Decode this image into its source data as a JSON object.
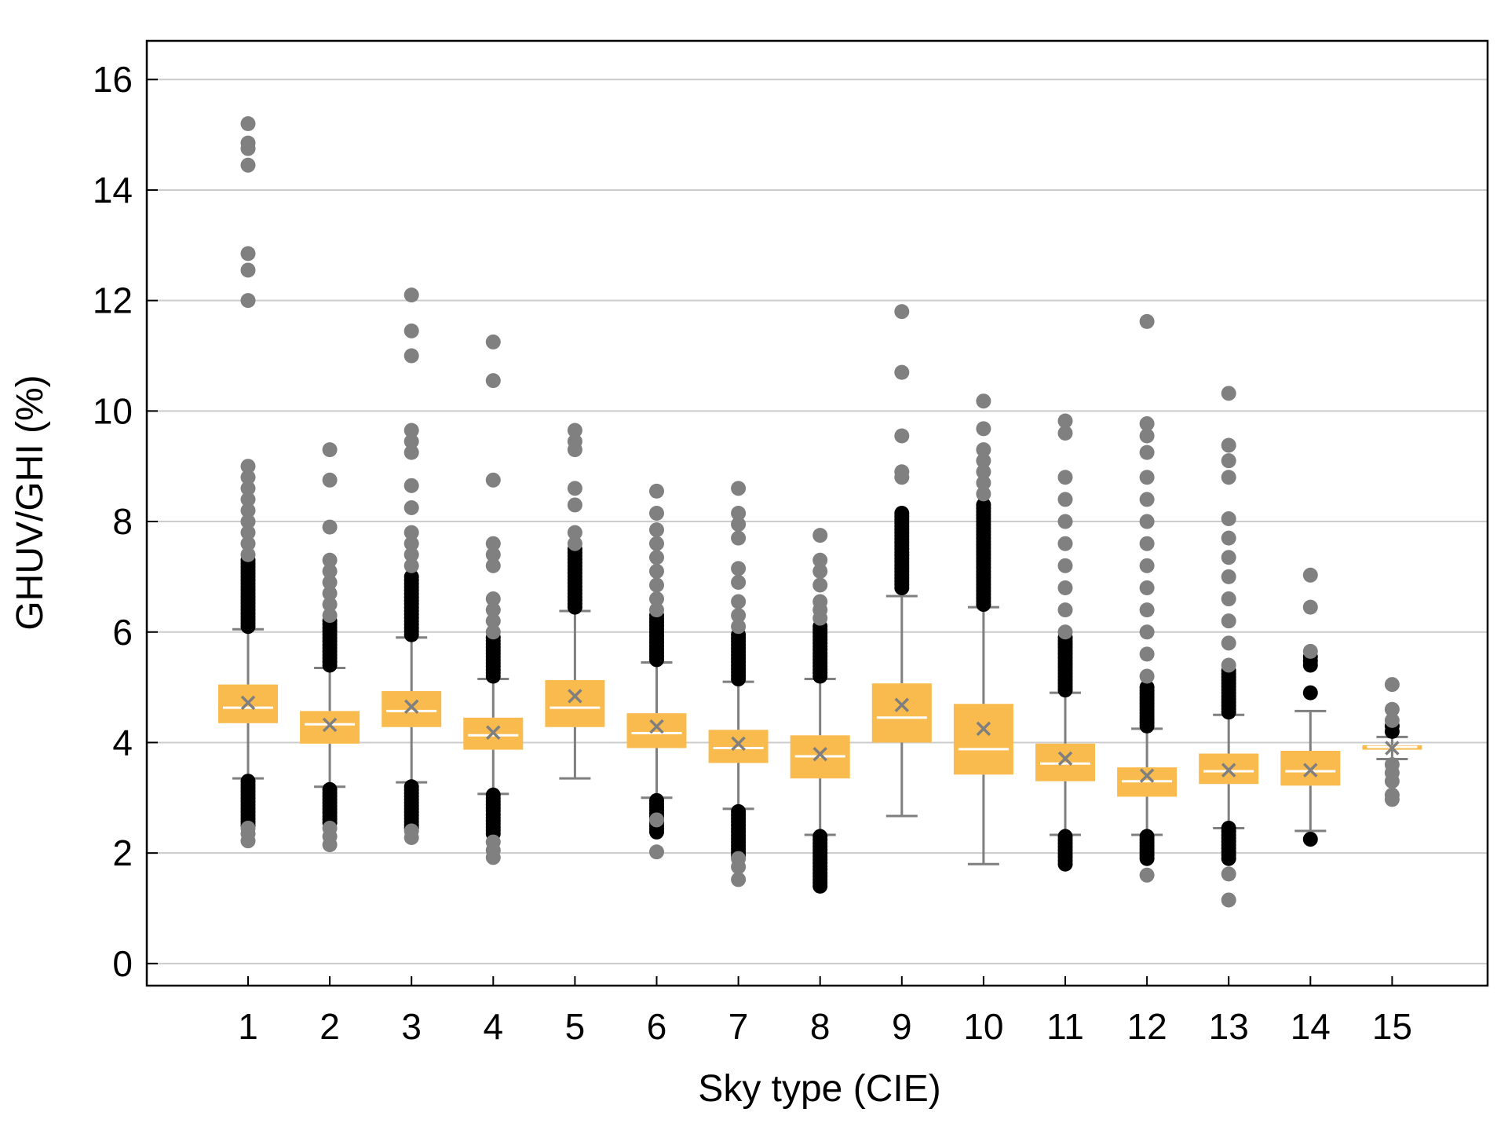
{
  "chart_data": {
    "type": "box",
    "title": "",
    "xlabel": "Sky type (CIE)",
    "ylabel": "GHUV/GHI (%)",
    "ylim": [
      -0.4,
      16.7
    ],
    "yticks": [
      0,
      2,
      4,
      6,
      8,
      10,
      12,
      14,
      16
    ],
    "grid": true,
    "categories": [
      "1",
      "2",
      "3",
      "4",
      "5",
      "6",
      "7",
      "8",
      "9",
      "10",
      "11",
      "12",
      "13",
      "14",
      "15"
    ],
    "colors": {
      "box": "#f9bb4d",
      "median": "#ffffff",
      "whisker": "#7f7f7f",
      "mean_marker": "#7f7f7f",
      "outlier_grey": "#808080",
      "outlier_black": "#000000",
      "grid": "#cccccc",
      "frame": "#000000"
    },
    "boxes": [
      {
        "category": "1",
        "q1": 4.35,
        "median": 4.63,
        "q3": 5.05,
        "whisker_low": 3.35,
        "whisker_high": 6.05,
        "mean": 4.72,
        "outliers_grey": [
          15.2,
          14.85,
          14.75,
          14.45,
          12.85,
          12.55,
          12.0,
          9.0,
          8.8,
          8.6,
          8.4,
          8.2,
          8.0,
          7.8,
          7.6,
          7.4,
          2.45,
          2.35,
          2.22
        ],
        "outliers_black_range": [
          [
            6.1,
            7.3
          ],
          [
            2.5,
            3.3
          ]
        ]
      },
      {
        "category": "2",
        "q1": 3.98,
        "median": 4.33,
        "q3": 4.57,
        "whisker_low": 3.2,
        "whisker_high": 5.35,
        "mean": 4.32,
        "outliers_grey": [
          9.3,
          8.75,
          7.9,
          7.3,
          7.1,
          6.9,
          6.7,
          6.5,
          6.3,
          2.15,
          2.3,
          2.45
        ],
        "outliers_black_range": [
          [
            5.4,
            6.2
          ],
          [
            2.55,
            3.15
          ]
        ]
      },
      {
        "category": "3",
        "q1": 4.28,
        "median": 4.57,
        "q3": 4.93,
        "whisker_low": 3.28,
        "whisker_high": 5.9,
        "mean": 4.65,
        "outliers_grey": [
          12.1,
          11.45,
          11.0,
          9.65,
          9.45,
          9.25,
          8.65,
          8.25,
          7.8,
          7.6,
          7.4,
          7.2,
          2.28,
          2.4
        ],
        "outliers_black_range": [
          [
            5.95,
            7.0
          ],
          [
            2.45,
            3.2
          ]
        ]
      },
      {
        "category": "4",
        "q1": 3.87,
        "median": 4.13,
        "q3": 4.45,
        "whisker_low": 3.07,
        "whisker_high": 5.15,
        "mean": 4.18,
        "outliers_grey": [
          11.25,
          10.55,
          8.75,
          7.6,
          7.4,
          7.2,
          6.6,
          6.4,
          6.2,
          6.0,
          1.92,
          2.05,
          2.2
        ],
        "outliers_black_range": [
          [
            5.2,
            5.9
          ],
          [
            2.35,
            3.05
          ]
        ]
      },
      {
        "category": "5",
        "q1": 4.28,
        "median": 4.63,
        "q3": 5.13,
        "whisker_low": 3.35,
        "whisker_high": 6.38,
        "mean": 4.84,
        "outliers_grey": [
          9.65,
          9.45,
          9.3,
          8.6,
          8.3,
          7.8,
          7.6
        ],
        "outliers_black_range": [
          [
            6.45,
            7.5
          ]
        ]
      },
      {
        "category": "6",
        "q1": 3.9,
        "median": 4.17,
        "q3": 4.53,
        "whisker_low": 3.0,
        "whisker_high": 5.45,
        "mean": 4.29,
        "outliers_grey": [
          8.55,
          8.15,
          7.85,
          7.6,
          7.35,
          7.1,
          6.85,
          6.6,
          6.4,
          2.02,
          2.6
        ],
        "outliers_black_range": [
          [
            5.5,
            6.3
          ],
          [
            2.38,
            2.95
          ]
        ]
      },
      {
        "category": "7",
        "q1": 3.63,
        "median": 3.9,
        "q3": 4.23,
        "whisker_low": 2.8,
        "whisker_high": 5.1,
        "mean": 3.98,
        "outliers_grey": [
          8.6,
          8.15,
          7.95,
          7.7,
          7.15,
          6.9,
          6.55,
          6.3,
          6.1,
          1.52,
          1.75,
          1.9
        ],
        "outliers_black_range": [
          [
            5.15,
            5.95
          ],
          [
            1.95,
            2.75
          ]
        ]
      },
      {
        "category": "8",
        "q1": 3.35,
        "median": 3.75,
        "q3": 4.13,
        "whisker_low": 2.33,
        "whisker_high": 5.15,
        "mean": 3.79,
        "outliers_grey": [
          7.75,
          7.3,
          7.1,
          6.85,
          6.55,
          6.4,
          6.25
        ],
        "outliers_black_range": [
          [
            5.2,
            6.1
          ],
          [
            1.4,
            2.3
          ]
        ]
      },
      {
        "category": "9",
        "q1": 4.0,
        "median": 4.45,
        "q3": 5.07,
        "whisker_low": 2.67,
        "whisker_high": 6.65,
        "mean": 4.68,
        "outliers_grey": [
          11.8,
          10.7,
          9.55,
          8.9,
          8.8
        ],
        "outliers_black_range": [
          [
            6.8,
            8.15
          ]
        ]
      },
      {
        "category": "10",
        "q1": 3.42,
        "median": 3.88,
        "q3": 4.7,
        "whisker_low": 1.8,
        "whisker_high": 6.45,
        "mean": 4.25,
        "outliers_grey": [
          10.18,
          9.68,
          9.3,
          9.1,
          8.9,
          8.7,
          8.5
        ],
        "outliers_black_range": [
          [
            6.5,
            8.3
          ]
        ]
      },
      {
        "category": "11",
        "q1": 3.3,
        "median": 3.62,
        "q3": 3.98,
        "whisker_low": 2.33,
        "whisker_high": 4.9,
        "mean": 3.71,
        "outliers_grey": [
          9.82,
          9.6,
          8.8,
          8.4,
          8.0,
          7.6,
          7.2,
          6.8,
          6.4,
          6.0
        ],
        "outliers_black_range": [
          [
            4.95,
            5.9
          ],
          [
            1.8,
            2.3
          ]
        ]
      },
      {
        "category": "12",
        "q1": 3.02,
        "median": 3.3,
        "q3": 3.55,
        "whisker_low": 2.33,
        "whisker_high": 4.25,
        "mean": 3.4,
        "outliers_grey": [
          11.62,
          9.77,
          9.55,
          9.25,
          8.8,
          8.4,
          8.0,
          7.6,
          7.2,
          6.8,
          6.4,
          6.0,
          5.6,
          5.2,
          1.6
        ],
        "outliers_black_range": [
          [
            4.3,
            5.0
          ],
          [
            1.9,
            2.3
          ]
        ]
      },
      {
        "category": "13",
        "q1": 3.25,
        "median": 3.48,
        "q3": 3.8,
        "whisker_low": 2.45,
        "whisker_high": 4.5,
        "mean": 3.5,
        "outliers_grey": [
          10.32,
          9.38,
          9.1,
          8.8,
          8.05,
          7.7,
          7.35,
          7.0,
          6.6,
          6.2,
          5.8,
          5.4,
          1.15,
          1.62
        ],
        "outliers_black_range": [
          [
            4.55,
            5.3
          ],
          [
            1.9,
            2.45
          ]
        ]
      },
      {
        "category": "14",
        "q1": 3.22,
        "median": 3.48,
        "q3": 3.85,
        "whisker_low": 2.4,
        "whisker_high": 4.57,
        "mean": 3.5,
        "outliers_grey": [
          7.03,
          6.45,
          5.65
        ],
        "outliers_black_range": [
          [
            5.4,
            5.55
          ]
        ],
        "outliers_black": [
          4.9,
          2.25
        ]
      },
      {
        "category": "15",
        "q1": 3.87,
        "median": 3.92,
        "q3": 3.95,
        "whisker_low": 3.7,
        "whisker_high": 4.1,
        "mean": 3.9,
        "outliers_grey": [
          5.05,
          4.6,
          4.4,
          3.6,
          3.45,
          3.3,
          3.05,
          2.97
        ],
        "outliers_black": [
          4.3,
          4.2
        ]
      }
    ]
  }
}
